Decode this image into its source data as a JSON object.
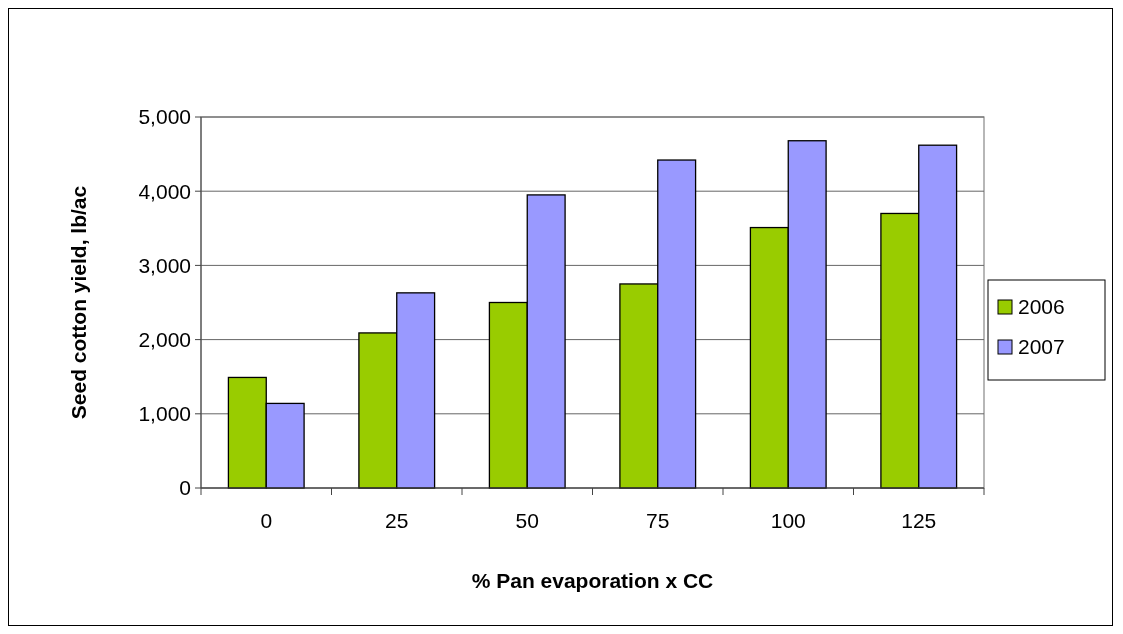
{
  "chart_data": {
    "type": "bar",
    "xlabel": "% Pan evaporation x CC",
    "ylabel": "Seed cotton yield, lb/ac",
    "categories": [
      "0",
      "25",
      "50",
      "75",
      "100",
      "125"
    ],
    "series": [
      {
        "name": "2006",
        "color": "#99cc00",
        "values": [
          1490,
          2090,
          2500,
          2750,
          3510,
          3700
        ]
      },
      {
        "name": "2007",
        "color": "#9999ff",
        "values": [
          1140,
          2630,
          3950,
          4420,
          4680,
          4620
        ]
      }
    ],
    "ylim": [
      0,
      5000
    ],
    "yticks": [
      {
        "value": 0,
        "label": "0"
      },
      {
        "value": 1000,
        "label": "1,000"
      },
      {
        "value": 2000,
        "label": "2,000"
      },
      {
        "value": 3000,
        "label": "3,000"
      },
      {
        "value": 4000,
        "label": "4,000"
      },
      {
        "value": 5000,
        "label": "5,000"
      }
    ],
    "grid": "y",
    "legend": "right"
  }
}
